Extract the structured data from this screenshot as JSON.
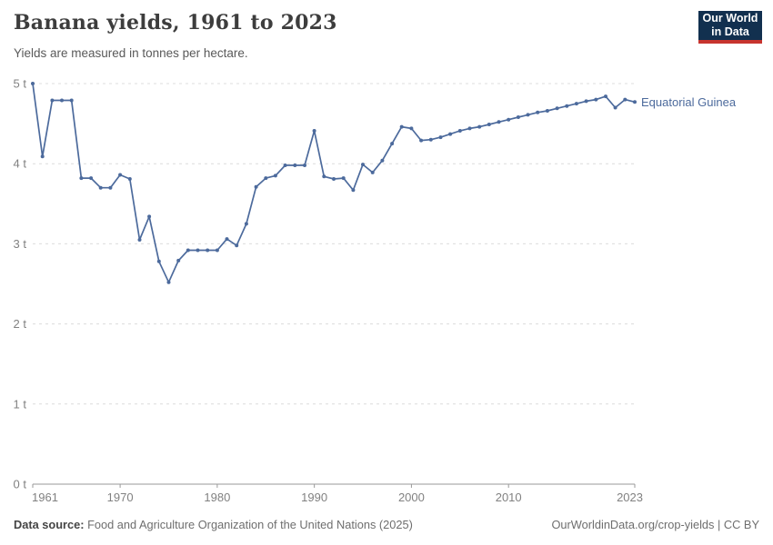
{
  "header": {
    "title": "Banana yields, 1961 to 2023",
    "subtitle": "Yields are measured in tonnes per hectare.",
    "logo": {
      "line1": "Our World",
      "line2": "in Data",
      "bg_color": "#12304F",
      "accent_color": "#C7342F"
    }
  },
  "chart_data": {
    "type": "line",
    "title": "Banana yields, 1961 to 2023",
    "ylabel": "tonnes per hectare",
    "xlim": [
      1961,
      2023
    ],
    "ylim": [
      0,
      5
    ],
    "xticks": [
      1961,
      1970,
      1980,
      1990,
      2000,
      2010,
      2023
    ],
    "yticks": [
      0,
      1,
      2,
      3,
      4,
      5
    ],
    "ytick_suffix": " t",
    "grid": "horizontal-dashed",
    "legend_position": "end-of-line",
    "colors": {
      "line": "#4C6A9C",
      "grid": "#dcdcdc",
      "axis": "#9a9a9a",
      "tick_text": "#818181"
    },
    "series": [
      {
        "name": "Equatorial Guinea",
        "color": "#4C6A9C",
        "x": [
          1961,
          1962,
          1963,
          1964,
          1965,
          1966,
          1967,
          1968,
          1969,
          1970,
          1971,
          1972,
          1973,
          1974,
          1975,
          1976,
          1977,
          1978,
          1979,
          1980,
          1981,
          1982,
          1983,
          1984,
          1985,
          1986,
          1987,
          1988,
          1989,
          1990,
          1991,
          1992,
          1993,
          1994,
          1995,
          1996,
          1997,
          1998,
          1999,
          2000,
          2001,
          2002,
          2003,
          2004,
          2005,
          2006,
          2007,
          2008,
          2009,
          2010,
          2011,
          2012,
          2013,
          2014,
          2015,
          2016,
          2017,
          2018,
          2019,
          2020,
          2021,
          2022,
          2023
        ],
        "values": [
          5.0,
          4.09,
          4.79,
          4.79,
          4.79,
          3.82,
          3.82,
          3.7,
          3.7,
          3.86,
          3.81,
          3.05,
          3.34,
          2.78,
          2.52,
          2.79,
          2.92,
          2.92,
          2.92,
          2.92,
          3.06,
          2.98,
          3.25,
          3.71,
          3.82,
          3.85,
          3.98,
          3.98,
          3.98,
          4.41,
          3.84,
          3.81,
          3.82,
          3.67,
          3.99,
          3.89,
          4.04,
          4.25,
          4.46,
          4.44,
          4.29,
          4.3,
          4.33,
          4.37,
          4.41,
          4.44,
          4.46,
          4.49,
          4.52,
          4.55,
          4.58,
          4.61,
          4.64,
          4.66,
          4.69,
          4.72,
          4.75,
          4.78,
          4.8,
          4.84,
          4.7,
          4.8,
          4.77
        ]
      }
    ]
  },
  "footer": {
    "source_label": "Data source:",
    "source_text": " Food and Agriculture Organization of the United Nations (2025)",
    "license_text": "OurWorldinData.org/crop-yields | CC BY"
  }
}
